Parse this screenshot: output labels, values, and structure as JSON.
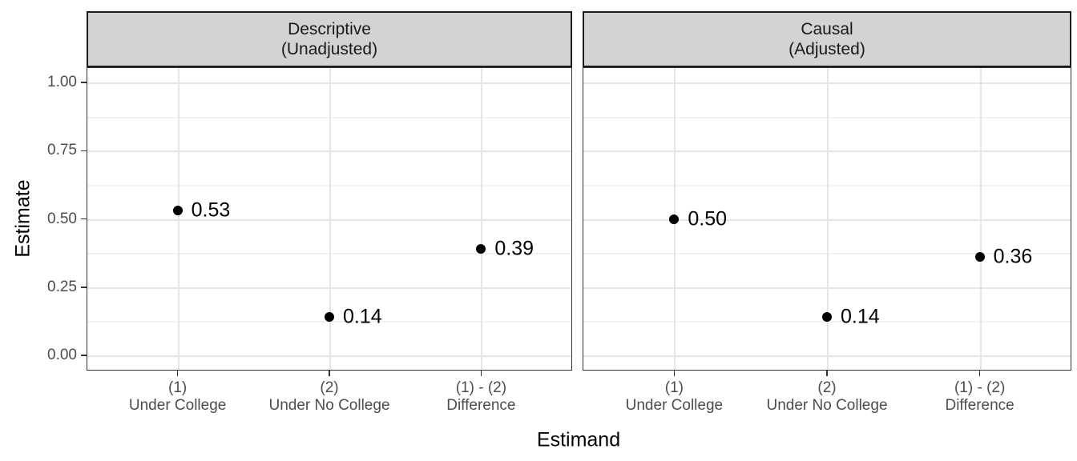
{
  "chart_data": {
    "type": "scatter",
    "title": "",
    "xlabel": "Estimand",
    "ylabel": "Estimate",
    "ylim": [
      0,
      1
    ],
    "grid": true,
    "legend_position": "none",
    "yticks": [
      {
        "value": 0.0,
        "label": "0.00"
      },
      {
        "value": 0.25,
        "label": "0.25"
      },
      {
        "value": 0.5,
        "label": "0.50"
      },
      {
        "value": 0.75,
        "label": "0.75"
      },
      {
        "value": 1.0,
        "label": "1.00"
      }
    ],
    "y_minor": [
      0.125,
      0.375,
      0.625,
      0.875
    ],
    "categories": [
      {
        "line1": "(1)",
        "line2": "Under College"
      },
      {
        "line1": "(2)",
        "line2": "Under No College"
      },
      {
        "line1": "(1) - (2)",
        "line2": "Difference"
      }
    ],
    "facets": [
      {
        "title_line1": "Descriptive",
        "title_line2": "(Unadjusted)",
        "values": [
          0.53,
          0.14,
          0.39
        ],
        "point_labels": [
          "0.53",
          "0.14",
          "0.39"
        ]
      },
      {
        "title_line1": "Causal",
        "title_line2": "(Adjusted)",
        "values": [
          0.5,
          0.14,
          0.36
        ],
        "point_labels": [
          "0.50",
          "0.14",
          "0.36"
        ]
      }
    ]
  },
  "colors": {
    "background": "#FFFFFF",
    "strip_bg": "#D3D3D3",
    "strip_border": "#1A1A1A",
    "strip_text": "#1A1A1A",
    "panel_border": "#333333",
    "grid_major": "#E5E5E5",
    "grid_minor": "#F2F2F2",
    "axis_text": "#4D4D4D",
    "tick_mark": "#333333",
    "point": "#000000",
    "point_label": "#000000",
    "title_text": "#000000"
  }
}
